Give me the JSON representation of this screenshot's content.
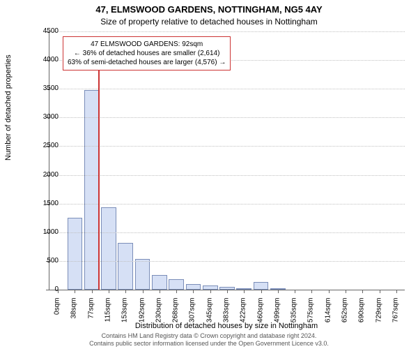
{
  "title_line1": "47, ELMSWOOD GARDENS, NOTTINGHAM, NG5 4AY",
  "title_line2": "Size of property relative to detached houses in Nottingham",
  "chart": {
    "type": "bar",
    "x_categories": [
      "0sqm",
      "38sqm",
      "77sqm",
      "115sqm",
      "153sqm",
      "192sqm",
      "230sqm",
      "268sqm",
      "307sqm",
      "345sqm",
      "383sqm",
      "422sqm",
      "460sqm",
      "499sqm",
      "535sqm",
      "575sqm",
      "614sqm",
      "652sqm",
      "690sqm",
      "729sqm",
      "767sqm"
    ],
    "values": [
      0,
      1250,
      3480,
      1440,
      820,
      540,
      250,
      180,
      100,
      70,
      50,
      30,
      130,
      20,
      0,
      0,
      0,
      0,
      0,
      0,
      0
    ],
    "ylim": [
      0,
      4500
    ],
    "ytick_step": 500,
    "bar_fill": "#d6e0f5",
    "bar_border": "#7a8db8",
    "grid_color": "#c0c0c0",
    "background_color": "#ffffff",
    "y_axis_title": "Number of detached properties",
    "x_axis_title": "Distribution of detached houses by size in Nottingham",
    "title_fontsize": 13,
    "label_fontsize": 10,
    "axis_title_fontsize": 11
  },
  "marker": {
    "position_sqm": 92,
    "color": "#cc3333"
  },
  "annotation": {
    "line1": "47 ELMSWOOD GARDENS: 92sqm",
    "line2": "← 36% of detached houses are smaller (2,614)",
    "line3": "63% of semi-detached houses are larger (4,576) →",
    "border_color": "#cc3333"
  },
  "attribution": {
    "line1": "Contains HM Land Registry data © Crown copyright and database right 2024.",
    "line2": "Contains public sector information licensed under the Open Government Licence v3.0."
  }
}
